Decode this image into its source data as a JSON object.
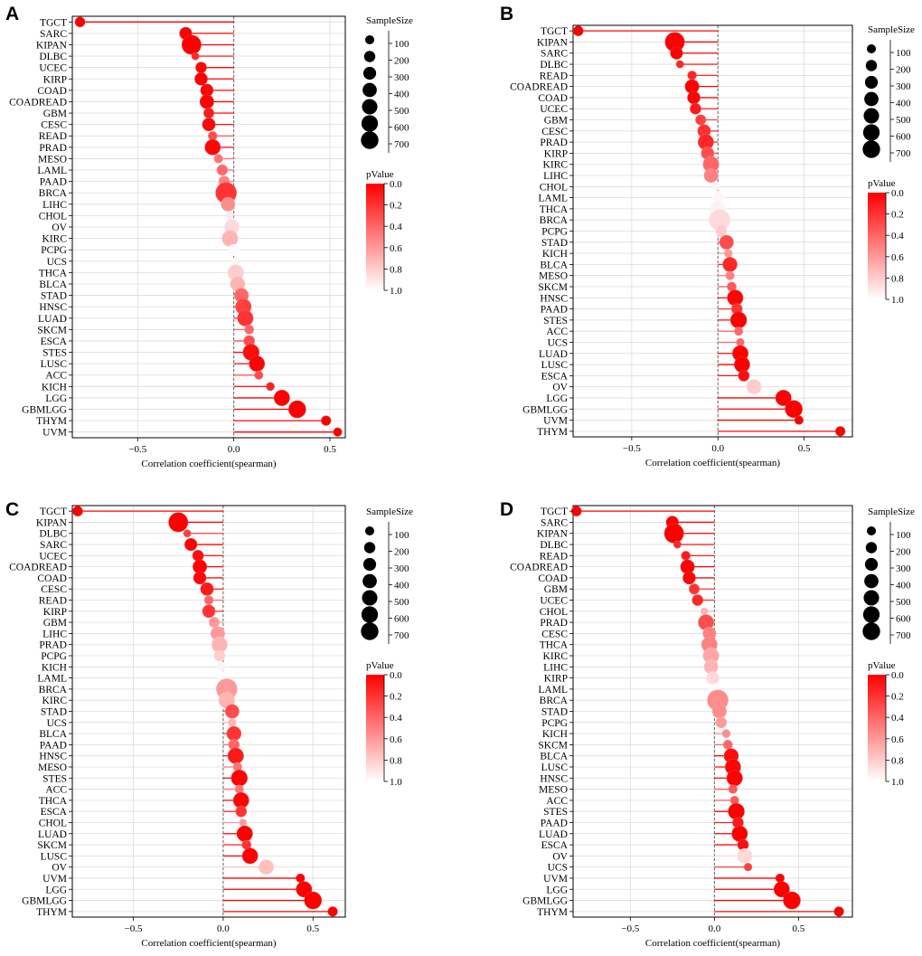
{
  "panels": [
    {
      "letter": "A",
      "xlabel": "Correlation coefficient(spearman)",
      "xticks": [
        {
          "v": -0.5,
          "label": "−0.5"
        },
        {
          "v": 0.0,
          "label": "0.0"
        },
        {
          "v": 0.5,
          "label": "0.5"
        }
      ],
      "xlim": [
        -0.84,
        0.58
      ],
      "size_legend_title": "SampleSize",
      "size_legend_values": [
        100,
        200,
        300,
        400,
        500,
        600,
        700
      ],
      "pvalue_legend_title": "pValue",
      "pvalue_ticks": [
        "0.0",
        "0.2",
        "0.4",
        "0.6",
        "0.8",
        "1.0"
      ]
    },
    {
      "letter": "B",
      "xlabel": "Correlation coefficient(spearman)",
      "xticks": [
        {
          "v": -0.5,
          "label": "−0.5"
        },
        {
          "v": 0.0,
          "label": "0.0"
        },
        {
          "v": 0.5,
          "label": "0.5"
        }
      ],
      "xlim": [
        -0.84,
        0.78
      ],
      "size_legend_title": "SampleSize",
      "size_legend_values": [
        100,
        200,
        300,
        400,
        500,
        600,
        700
      ],
      "pvalue_legend_title": "pValue",
      "pvalue_ticks": [
        "0.0",
        "0.2",
        "0.4",
        "0.6",
        "0.8",
        "1.0"
      ]
    },
    {
      "letter": "C",
      "xlabel": "Correlation coefficient(spearman)",
      "xticks": [
        {
          "v": -0.5,
          "label": "−0.5"
        },
        {
          "v": 0.0,
          "label": "0.0"
        },
        {
          "v": 0.5,
          "label": "0.5"
        }
      ],
      "xlim": [
        -0.84,
        0.68
      ],
      "size_legend_title": "SampleSize",
      "size_legend_values": [
        100,
        200,
        300,
        400,
        500,
        600,
        700
      ],
      "pvalue_legend_title": "pValue",
      "pvalue_ticks": [
        "0.0",
        "0.2",
        "0.4",
        "0.6",
        "0.8",
        "1.0"
      ]
    },
    {
      "letter": "D",
      "xlabel": "Correlation coefficient(spearman)",
      "xticks": [
        {
          "v": -0.5,
          "label": "−0.5"
        },
        {
          "v": 0.0,
          "label": "0.0"
        },
        {
          "v": 0.5,
          "label": "0.5"
        }
      ],
      "xlim": [
        -0.84,
        0.82
      ],
      "size_legend_title": "SampleSize",
      "size_legend_values": [
        100,
        200,
        300,
        400,
        500,
        600,
        700
      ],
      "pvalue_legend_title": "pValue",
      "pvalue_ticks": [
        "0.0",
        "0.2",
        "0.4",
        "0.6",
        "0.8",
        "1.0"
      ]
    }
  ],
  "chart_data": [
    {
      "type": "scatter",
      "panel": "A",
      "xlabel": "Correlation coefficient(spearman)",
      "points": [
        {
          "cancer": "TGCT",
          "r": -0.8,
          "n": 134,
          "p": 0.0
        },
        {
          "cancer": "SARC",
          "r": -0.25,
          "n": 259,
          "p": 0.0
        },
        {
          "cancer": "KIPAN",
          "r": -0.22,
          "n": 880,
          "p": 0.0
        },
        {
          "cancer": "DLBC",
          "r": -0.2,
          "n": 46,
          "p": 0.17
        },
        {
          "cancer": "UCEC",
          "r": -0.17,
          "n": 180,
          "p": 0.02
        },
        {
          "cancer": "KIRP",
          "r": -0.17,
          "n": 285,
          "p": 0.0
        },
        {
          "cancer": "COAD",
          "r": -0.14,
          "n": 280,
          "p": 0.02
        },
        {
          "cancer": "COADREAD",
          "r": -0.14,
          "n": 370,
          "p": 0.01
        },
        {
          "cancer": "GBM",
          "r": -0.13,
          "n": 150,
          "p": 0.11
        },
        {
          "cancer": "CESC",
          "r": -0.13,
          "n": 300,
          "p": 0.03
        },
        {
          "cancer": "READ",
          "r": -0.11,
          "n": 90,
          "p": 0.3
        },
        {
          "cancer": "PRAD",
          "r": -0.11,
          "n": 495,
          "p": 0.02
        },
        {
          "cancer": "MESO",
          "r": -0.08,
          "n": 84,
          "p": 0.45
        },
        {
          "cancer": "LAML",
          "r": -0.06,
          "n": 170,
          "p": 0.42
        },
        {
          "cancer": "PAAD",
          "r": -0.05,
          "n": 178,
          "p": 0.5
        },
        {
          "cancer": "BRCA",
          "r": -0.04,
          "n": 1070,
          "p": 0.2
        },
        {
          "cancer": "LIHC",
          "r": -0.03,
          "n": 370,
          "p": 0.55
        },
        {
          "cancer": "CHOL",
          "r": -0.02,
          "n": 36,
          "p": 0.9
        },
        {
          "cancer": "OV",
          "r": -0.01,
          "n": 420,
          "p": 0.85
        },
        {
          "cancer": "KIRC",
          "r": -0.02,
          "n": 530,
          "p": 0.7
        },
        {
          "cancer": "PCPG",
          "r": 0.0,
          "n": 180,
          "p": 0.98
        },
        {
          "cancer": "UCS",
          "r": 0.01,
          "n": 56,
          "p": 0.95
        },
        {
          "cancer": "THCA",
          "r": 0.01,
          "n": 510,
          "p": 0.8
        },
        {
          "cancer": "BLCA",
          "r": 0.02,
          "n": 405,
          "p": 0.7
        },
        {
          "cancer": "STAD",
          "r": 0.04,
          "n": 375,
          "p": 0.4
        },
        {
          "cancer": "HNSC",
          "r": 0.05,
          "n": 520,
          "p": 0.25
        },
        {
          "cancer": "LUAD",
          "r": 0.06,
          "n": 515,
          "p": 0.2
        },
        {
          "cancer": "SKCM",
          "r": 0.08,
          "n": 100,
          "p": 0.4
        },
        {
          "cancer": "ESCA",
          "r": 0.08,
          "n": 180,
          "p": 0.3
        },
        {
          "cancer": "STES",
          "r": 0.09,
          "n": 560,
          "p": 0.05
        },
        {
          "cancer": "LUSC",
          "r": 0.12,
          "n": 500,
          "p": 0.01
        },
        {
          "cancer": "ACC",
          "r": 0.13,
          "n": 77,
          "p": 0.3
        },
        {
          "cancer": "KICH",
          "r": 0.19,
          "n": 65,
          "p": 0.12
        },
        {
          "cancer": "LGG",
          "r": 0.25,
          "n": 510,
          "p": 0.0
        },
        {
          "cancer": "GBMLGG",
          "r": 0.33,
          "n": 660,
          "p": 0.0
        },
        {
          "cancer": "THYM",
          "r": 0.48,
          "n": 119,
          "p": 0.0
        },
        {
          "cancer": "UVM",
          "r": 0.54,
          "n": 80,
          "p": 0.0
        }
      ]
    },
    {
      "type": "scatter",
      "panel": "B",
      "xlabel": "Correlation coefficient(spearman)",
      "points": [
        {
          "cancer": "TGCT",
          "r": -0.81,
          "n": 134,
          "p": 0.0
        },
        {
          "cancer": "KIPAN",
          "r": -0.25,
          "n": 880,
          "p": 0.0
        },
        {
          "cancer": "SARC",
          "r": -0.24,
          "n": 259,
          "p": 0.0
        },
        {
          "cancer": "DLBC",
          "r": -0.22,
          "n": 46,
          "p": 0.15
        },
        {
          "cancer": "READ",
          "r": -0.15,
          "n": 90,
          "p": 0.15
        },
        {
          "cancer": "COADREAD",
          "r": -0.15,
          "n": 370,
          "p": 0.0
        },
        {
          "cancer": "COAD",
          "r": -0.14,
          "n": 280,
          "p": 0.02
        },
        {
          "cancer": "UCEC",
          "r": -0.13,
          "n": 180,
          "p": 0.1
        },
        {
          "cancer": "GBM",
          "r": -0.1,
          "n": 150,
          "p": 0.25
        },
        {
          "cancer": "CESC",
          "r": -0.08,
          "n": 300,
          "p": 0.2
        },
        {
          "cancer": "PRAD",
          "r": -0.07,
          "n": 495,
          "p": 0.15
        },
        {
          "cancer": "KIRP",
          "r": -0.06,
          "n": 285,
          "p": 0.3
        },
        {
          "cancer": "KIRC",
          "r": -0.04,
          "n": 530,
          "p": 0.4
        },
        {
          "cancer": "LIHC",
          "r": -0.04,
          "n": 370,
          "p": 0.5
        },
        {
          "cancer": "CHOL",
          "r": -0.01,
          "n": 36,
          "p": 0.95
        },
        {
          "cancer": "LAML",
          "r": 0.0,
          "n": 170,
          "p": 0.97
        },
        {
          "cancer": "THCA",
          "r": 0.0,
          "n": 510,
          "p": 0.95
        },
        {
          "cancer": "BRCA",
          "r": 0.01,
          "n": 1070,
          "p": 0.85
        },
        {
          "cancer": "PCPG",
          "r": 0.02,
          "n": 180,
          "p": 0.8
        },
        {
          "cancer": "STAD",
          "r": 0.05,
          "n": 375,
          "p": 0.3
        },
        {
          "cancer": "KICH",
          "r": 0.06,
          "n": 65,
          "p": 0.6
        },
        {
          "cancer": "BLCA",
          "r": 0.07,
          "n": 405,
          "p": 0.15
        },
        {
          "cancer": "MESO",
          "r": 0.07,
          "n": 84,
          "p": 0.5
        },
        {
          "cancer": "SKCM",
          "r": 0.08,
          "n": 100,
          "p": 0.35
        },
        {
          "cancer": "HNSC",
          "r": 0.1,
          "n": 520,
          "p": 0.02
        },
        {
          "cancer": "PAAD",
          "r": 0.11,
          "n": 178,
          "p": 0.2
        },
        {
          "cancer": "STES",
          "r": 0.12,
          "n": 560,
          "p": 0.0
        },
        {
          "cancer": "ACC",
          "r": 0.12,
          "n": 77,
          "p": 0.4
        },
        {
          "cancer": "UCS",
          "r": 0.13,
          "n": 56,
          "p": 0.4
        },
        {
          "cancer": "LUAD",
          "r": 0.13,
          "n": 515,
          "p": 0.0
        },
        {
          "cancer": "LUSC",
          "r": 0.14,
          "n": 500,
          "p": 0.0
        },
        {
          "cancer": "ESCA",
          "r": 0.15,
          "n": 180,
          "p": 0.05
        },
        {
          "cancer": "OV",
          "r": 0.21,
          "n": 420,
          "p": 0.8
        },
        {
          "cancer": "LGG",
          "r": 0.38,
          "n": 510,
          "p": 0.0
        },
        {
          "cancer": "GBMLGG",
          "r": 0.44,
          "n": 660,
          "p": 0.0
        },
        {
          "cancer": "UVM",
          "r": 0.47,
          "n": 80,
          "p": 0.0
        },
        {
          "cancer": "THYM",
          "r": 0.71,
          "n": 119,
          "p": 0.0
        }
      ]
    },
    {
      "type": "scatter",
      "panel": "C",
      "xlabel": "Correlation coefficient(spearman)",
      "points": [
        {
          "cancer": "TGCT",
          "r": -0.81,
          "n": 134,
          "p": 0.0
        },
        {
          "cancer": "KIPAN",
          "r": -0.25,
          "n": 880,
          "p": 0.0
        },
        {
          "cancer": "DLBC",
          "r": -0.2,
          "n": 46,
          "p": 0.25
        },
        {
          "cancer": "SARC",
          "r": -0.18,
          "n": 259,
          "p": 0.0
        },
        {
          "cancer": "UCEC",
          "r": -0.14,
          "n": 180,
          "p": 0.05
        },
        {
          "cancer": "COADREAD",
          "r": -0.13,
          "n": 370,
          "p": 0.01
        },
        {
          "cancer": "COAD",
          "r": -0.13,
          "n": 280,
          "p": 0.03
        },
        {
          "cancer": "CESC",
          "r": -0.09,
          "n": 300,
          "p": 0.1
        },
        {
          "cancer": "READ",
          "r": -0.08,
          "n": 90,
          "p": 0.4
        },
        {
          "cancer": "KIRP",
          "r": -0.08,
          "n": 285,
          "p": 0.2
        },
        {
          "cancer": "GBM",
          "r": -0.05,
          "n": 150,
          "p": 0.6
        },
        {
          "cancer": "LIHC",
          "r": -0.03,
          "n": 370,
          "p": 0.6
        },
        {
          "cancer": "PRAD",
          "r": -0.02,
          "n": 495,
          "p": 0.7
        },
        {
          "cancer": "PCPG",
          "r": -0.02,
          "n": 180,
          "p": 0.8
        },
        {
          "cancer": "KICH",
          "r": -0.01,
          "n": 65,
          "p": 0.95
        },
        {
          "cancer": "LAML",
          "r": 0.0,
          "n": 170,
          "p": 0.99
        },
        {
          "cancer": "BRCA",
          "r": 0.02,
          "n": 1070,
          "p": 0.6
        },
        {
          "cancer": "KIRC",
          "r": 0.02,
          "n": 530,
          "p": 0.7
        },
        {
          "cancer": "STAD",
          "r": 0.05,
          "n": 375,
          "p": 0.3
        },
        {
          "cancer": "UCS",
          "r": 0.05,
          "n": 56,
          "p": 0.7
        },
        {
          "cancer": "BLCA",
          "r": 0.06,
          "n": 405,
          "p": 0.2
        },
        {
          "cancer": "PAAD",
          "r": 0.06,
          "n": 178,
          "p": 0.4
        },
        {
          "cancer": "HNSC",
          "r": 0.07,
          "n": 520,
          "p": 0.1
        },
        {
          "cancer": "MESO",
          "r": 0.08,
          "n": 84,
          "p": 0.45
        },
        {
          "cancer": "STES",
          "r": 0.09,
          "n": 560,
          "p": 0.01
        },
        {
          "cancer": "ACC",
          "r": 0.09,
          "n": 77,
          "p": 0.45
        },
        {
          "cancer": "THCA",
          "r": 0.1,
          "n": 510,
          "p": 0.02
        },
        {
          "cancer": "ESCA",
          "r": 0.1,
          "n": 180,
          "p": 0.2
        },
        {
          "cancer": "CHOL",
          "r": 0.11,
          "n": 36,
          "p": 0.6
        },
        {
          "cancer": "LUAD",
          "r": 0.12,
          "n": 515,
          "p": 0.0
        },
        {
          "cancer": "SKCM",
          "r": 0.13,
          "n": 100,
          "p": 0.2
        },
        {
          "cancer": "LUSC",
          "r": 0.15,
          "n": 500,
          "p": 0.0
        },
        {
          "cancer": "OV",
          "r": 0.24,
          "n": 420,
          "p": 0.75
        },
        {
          "cancer": "UVM",
          "r": 0.43,
          "n": 80,
          "p": 0.0
        },
        {
          "cancer": "LGG",
          "r": 0.45,
          "n": 510,
          "p": 0.0
        },
        {
          "cancer": "GBMLGG",
          "r": 0.5,
          "n": 660,
          "p": 0.0
        },
        {
          "cancer": "THYM",
          "r": 0.61,
          "n": 119,
          "p": 0.0
        }
      ]
    },
    {
      "type": "scatter",
      "panel": "D",
      "xlabel": "Correlation coefficient(spearman)",
      "points": [
        {
          "cancer": "TGCT",
          "r": -0.82,
          "n": 134,
          "p": 0.0
        },
        {
          "cancer": "SARC",
          "r": -0.25,
          "n": 259,
          "p": 0.0
        },
        {
          "cancer": "KIPAN",
          "r": -0.24,
          "n": 880,
          "p": 0.0
        },
        {
          "cancer": "DLBC",
          "r": -0.22,
          "n": 46,
          "p": 0.15
        },
        {
          "cancer": "READ",
          "r": -0.17,
          "n": 90,
          "p": 0.1
        },
        {
          "cancer": "COADREAD",
          "r": -0.16,
          "n": 370,
          "p": 0.0
        },
        {
          "cancer": "COAD",
          "r": -0.15,
          "n": 280,
          "p": 0.02
        },
        {
          "cancer": "GBM",
          "r": -0.12,
          "n": 150,
          "p": 0.2
        },
        {
          "cancer": "UCEC",
          "r": -0.1,
          "n": 180,
          "p": 0.15
        },
        {
          "cancer": "CHOL",
          "r": -0.06,
          "n": 36,
          "p": 0.7
        },
        {
          "cancer": "PRAD",
          "r": -0.05,
          "n": 495,
          "p": 0.3
        },
        {
          "cancer": "CESC",
          "r": -0.03,
          "n": 300,
          "p": 0.5
        },
        {
          "cancer": "THCA",
          "r": -0.03,
          "n": 510,
          "p": 0.5
        },
        {
          "cancer": "KIRC",
          "r": -0.02,
          "n": 530,
          "p": 0.65
        },
        {
          "cancer": "LIHC",
          "r": -0.02,
          "n": 370,
          "p": 0.7
        },
        {
          "cancer": "KIRP",
          "r": -0.01,
          "n": 285,
          "p": 0.85
        },
        {
          "cancer": "LAML",
          "r": 0.0,
          "n": 170,
          "p": 0.98
        },
        {
          "cancer": "BRCA",
          "r": 0.02,
          "n": 1070,
          "p": 0.55
        },
        {
          "cancer": "STAD",
          "r": 0.03,
          "n": 375,
          "p": 0.55
        },
        {
          "cancer": "PCPG",
          "r": 0.04,
          "n": 180,
          "p": 0.6
        },
        {
          "cancer": "KICH",
          "r": 0.07,
          "n": 65,
          "p": 0.55
        },
        {
          "cancer": "SKCM",
          "r": 0.08,
          "n": 100,
          "p": 0.4
        },
        {
          "cancer": "BLCA",
          "r": 0.1,
          "n": 405,
          "p": 0.05
        },
        {
          "cancer": "LUSC",
          "r": 0.11,
          "n": 500,
          "p": 0.02
        },
        {
          "cancer": "HNSC",
          "r": 0.12,
          "n": 520,
          "p": 0.01
        },
        {
          "cancer": "MESO",
          "r": 0.11,
          "n": 84,
          "p": 0.35
        },
        {
          "cancer": "ACC",
          "r": 0.12,
          "n": 77,
          "p": 0.35
        },
        {
          "cancer": "STES",
          "r": 0.13,
          "n": 560,
          "p": 0.0
        },
        {
          "cancer": "PAAD",
          "r": 0.14,
          "n": 178,
          "p": 0.1
        },
        {
          "cancer": "LUAD",
          "r": 0.15,
          "n": 515,
          "p": 0.0
        },
        {
          "cancer": "ESCA",
          "r": 0.17,
          "n": 180,
          "p": 0.05
        },
        {
          "cancer": "OV",
          "r": 0.18,
          "n": 420,
          "p": 0.85
        },
        {
          "cancer": "UCS",
          "r": 0.2,
          "n": 56,
          "p": 0.25
        },
        {
          "cancer": "UVM",
          "r": 0.39,
          "n": 80,
          "p": 0.0
        },
        {
          "cancer": "LGG",
          "r": 0.4,
          "n": 510,
          "p": 0.0
        },
        {
          "cancer": "GBMLGG",
          "r": 0.46,
          "n": 660,
          "p": 0.0
        },
        {
          "cancer": "THYM",
          "r": 0.74,
          "n": 119,
          "p": 0.0
        }
      ]
    }
  ]
}
